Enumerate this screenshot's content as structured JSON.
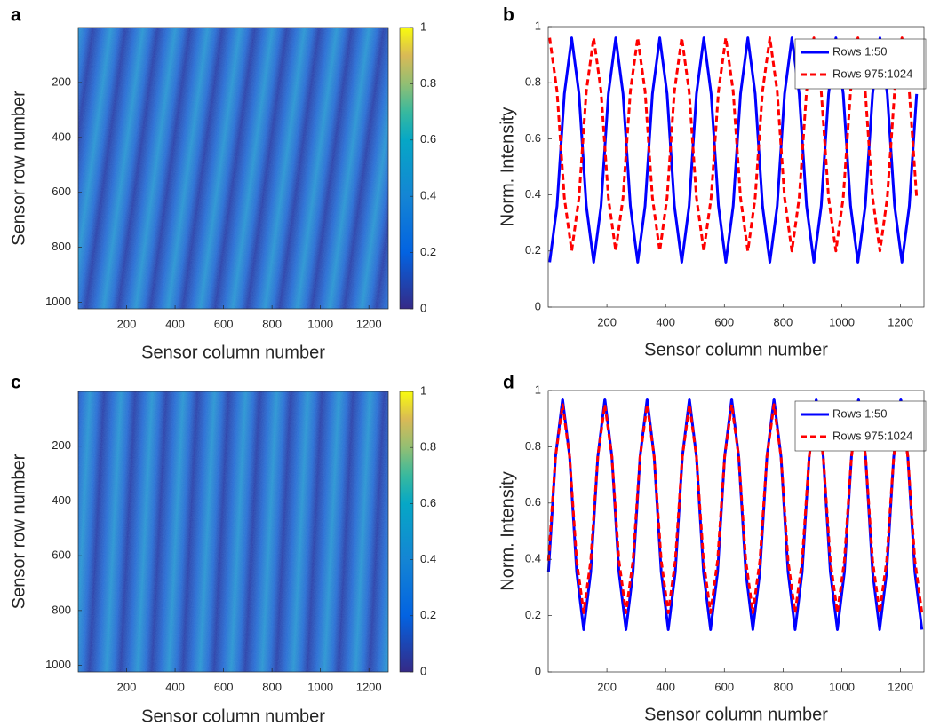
{
  "chart_data": [
    {
      "type": "heatmap",
      "label": "a",
      "xlabel": "Sensor column number",
      "ylabel": "Sensor row number",
      "xlim": [
        0,
        1280
      ],
      "ylim": [
        1024,
        0
      ],
      "xticks": [
        200,
        400,
        600,
        800,
        1000,
        1200
      ],
      "yticks": [
        200,
        400,
        600,
        800,
        1000
      ],
      "clim": [
        0,
        1
      ],
      "cticks": [
        0,
        0.2,
        0.4,
        0.6,
        0.8,
        1
      ]
    },
    {
      "type": "line",
      "label": "b",
      "xlabel": "Sensor column number",
      "ylabel": "Norm. Intensity",
      "xlim": [
        0,
        1280
      ],
      "ylim": [
        0,
        1
      ],
      "xticks": [
        200,
        400,
        600,
        800,
        1000,
        1200
      ],
      "yticks": [
        0,
        0.2,
        0.4,
        0.6,
        0.8,
        1
      ],
      "legend": "upper right",
      "x": [
        5,
        30,
        55,
        80,
        105,
        130,
        155,
        180,
        205,
        230,
        255,
        280,
        305,
        330,
        355,
        380,
        405,
        430,
        455,
        480,
        505,
        530,
        555,
        580,
        605,
        630,
        655,
        680,
        705,
        730,
        755,
        780,
        805,
        830,
        855,
        880,
        905,
        930,
        955,
        980,
        1005,
        1030,
        1055,
        1080,
        1105,
        1130,
        1155,
        1180,
        1205,
        1230,
        1255
      ],
      "series": [
        {
          "name": "Rows 1:50",
          "color": "#0000ff",
          "values": [
            0.16,
            0.36,
            0.76,
            0.96,
            0.76,
            0.36,
            0.16,
            0.36,
            0.76,
            0.96,
            0.76,
            0.36,
            0.16,
            0.36,
            0.76,
            0.96,
            0.76,
            0.36,
            0.16,
            0.36,
            0.76,
            0.96,
            0.76,
            0.36,
            0.16,
            0.36,
            0.76,
            0.96,
            0.76,
            0.36,
            0.16,
            0.36,
            0.76,
            0.96,
            0.76,
            0.36,
            0.16,
            0.36,
            0.76,
            0.96,
            0.76,
            0.36,
            0.16,
            0.36,
            0.76,
            0.96,
            0.76,
            0.36,
            0.16,
            0.36,
            0.76
          ]
        },
        {
          "name": "Rows 975:1024",
          "color": "#ff0000",
          "values": [
            0.96,
            0.77,
            0.39,
            0.2,
            0.39,
            0.77,
            0.96,
            0.77,
            0.39,
            0.2,
            0.39,
            0.77,
            0.96,
            0.77,
            0.39,
            0.2,
            0.39,
            0.77,
            0.96,
            0.77,
            0.39,
            0.2,
            0.39,
            0.77,
            0.96,
            0.77,
            0.39,
            0.2,
            0.39,
            0.77,
            0.96,
            0.77,
            0.39,
            0.2,
            0.39,
            0.77,
            0.96,
            0.77,
            0.39,
            0.2,
            0.39,
            0.77,
            0.96,
            0.77,
            0.39,
            0.2,
            0.39,
            0.77,
            0.96,
            0.77,
            0.39
          ]
        }
      ]
    },
    {
      "type": "heatmap",
      "label": "c",
      "xlabel": "Sensor column number",
      "ylabel": "Sensor row number",
      "xlim": [
        0,
        1280
      ],
      "ylim": [
        1024,
        0
      ],
      "xticks": [
        200,
        400,
        600,
        800,
        1000,
        1200
      ],
      "yticks": [
        200,
        400,
        600,
        800,
        1000
      ],
      "clim": [
        0,
        1
      ],
      "cticks": [
        0,
        0.2,
        0.4,
        0.6,
        0.8,
        1
      ]
    },
    {
      "type": "line",
      "label": "d",
      "xlabel": "Sensor column number",
      "ylabel": "Norm. Intensity",
      "xlim": [
        0,
        1280
      ],
      "ylim": [
        0,
        1
      ],
      "xticks": [
        200,
        400,
        600,
        800,
        1000,
        1200
      ],
      "yticks": [
        0,
        0.2,
        0.4,
        0.6,
        0.8,
        1
      ],
      "legend": "upper right",
      "x": [
        1,
        25,
        49,
        73,
        97,
        121,
        145,
        169,
        193,
        217,
        241,
        265,
        289,
        313,
        337,
        361,
        385,
        409,
        433,
        457,
        481,
        505,
        529,
        553,
        577,
        601,
        625,
        649,
        673,
        697,
        721,
        745,
        769,
        793,
        817,
        841,
        865,
        889,
        913,
        937,
        961,
        985,
        1009,
        1033,
        1057,
        1081,
        1105,
        1129,
        1153,
        1177,
        1201,
        1225,
        1249,
        1273
      ],
      "series": [
        {
          "name": "Rows 1:50",
          "color": "#0000ff",
          "values": [
            0.355,
            0.765,
            0.97,
            0.765,
            0.355,
            0.15,
            0.355,
            0.765,
            0.97,
            0.765,
            0.355,
            0.15,
            0.355,
            0.765,
            0.97,
            0.765,
            0.355,
            0.15,
            0.355,
            0.765,
            0.97,
            0.765,
            0.355,
            0.15,
            0.355,
            0.765,
            0.97,
            0.765,
            0.355,
            0.15,
            0.355,
            0.765,
            0.97,
            0.765,
            0.355,
            0.15,
            0.355,
            0.765,
            0.97,
            0.765,
            0.355,
            0.15,
            0.355,
            0.765,
            0.97,
            0.765,
            0.355,
            0.15,
            0.355,
            0.765,
            0.97,
            0.765,
            0.355,
            0.15
          ]
        },
        {
          "name": "Rows 975:1024",
          "color": "#ff0000",
          "values": [
            0.395,
            0.765,
            0.95,
            0.765,
            0.395,
            0.21,
            0.395,
            0.765,
            0.95,
            0.765,
            0.395,
            0.21,
            0.395,
            0.765,
            0.95,
            0.765,
            0.395,
            0.21,
            0.395,
            0.765,
            0.95,
            0.765,
            0.395,
            0.21,
            0.395,
            0.765,
            0.95,
            0.765,
            0.395,
            0.21,
            0.395,
            0.765,
            0.95,
            0.765,
            0.395,
            0.21,
            0.395,
            0.765,
            0.95,
            0.765,
            0.395,
            0.21,
            0.395,
            0.765,
            0.95,
            0.765,
            0.395,
            0.21,
            0.395,
            0.765,
            0.95,
            0.765,
            0.395,
            0.21
          ]
        }
      ]
    }
  ]
}
